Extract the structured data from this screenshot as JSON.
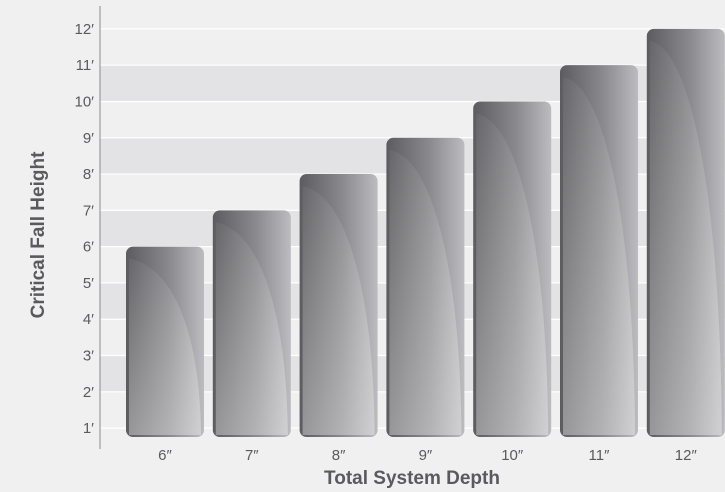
{
  "chart_data": {
    "type": "bar",
    "categories": [
      "6″",
      "7″",
      "8″",
      "9″",
      "10″",
      "11″",
      "12″"
    ],
    "values": [
      6,
      7,
      8,
      9,
      10,
      11,
      12
    ],
    "y_ticks": [
      {
        "value": 1,
        "label": "1′"
      },
      {
        "value": 2,
        "label": "2′"
      },
      {
        "value": 3,
        "label": "3′"
      },
      {
        "value": 4,
        "label": "4′"
      },
      {
        "value": 5,
        "label": "5′"
      },
      {
        "value": 6,
        "label": "6′"
      },
      {
        "value": 7,
        "label": "7′"
      },
      {
        "value": 8,
        "label": "8′"
      },
      {
        "value": 9,
        "label": "9′"
      },
      {
        "value": 10,
        "label": "10′"
      },
      {
        "value": 11,
        "label": "11′"
      },
      {
        "value": 12,
        "label": "12′"
      }
    ],
    "title": "",
    "xlabel": "Total System Depth",
    "ylabel": "Critical Fall Height",
    "ylim": [
      0.7,
      12.3
    ],
    "grid": true,
    "colors": {
      "band_light": "#f0f0f1",
      "band_dark": "#e3e3e6",
      "grid": "#ffffff",
      "axis": "#8a8a8e",
      "bar_dark": "#5e5e62",
      "bar_light": "#b9b9bd",
      "text": "#5a5a5e"
    }
  }
}
